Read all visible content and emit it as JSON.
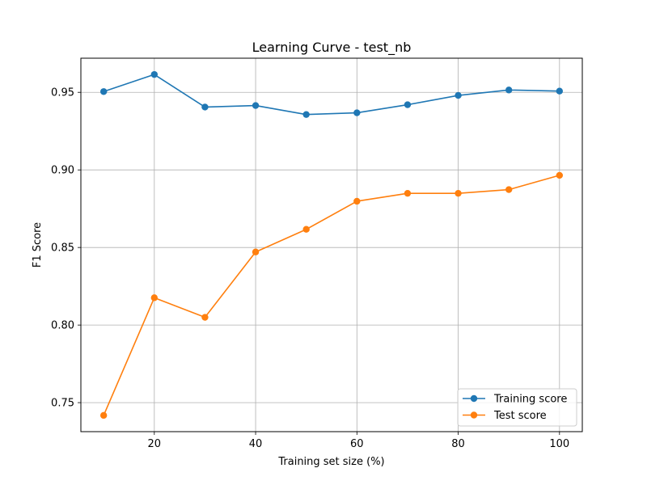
{
  "chart_data": {
    "type": "line",
    "title": "Learning Curve - test_nb",
    "xlabel": "Training set size (%)",
    "ylabel": "F1 Score",
    "xlim": [
      5.5,
      104.5
    ],
    "ylim": [
      0.7313,
      0.972
    ],
    "x": [
      10,
      20,
      30,
      40,
      50,
      60,
      70,
      80,
      90,
      100
    ],
    "xticks": [
      20,
      40,
      60,
      80,
      100
    ],
    "yticks": [
      0.75,
      0.8,
      0.85,
      0.9,
      0.95
    ],
    "ytick_labels": [
      "0.75",
      "0.80",
      "0.85",
      "0.90",
      "0.95"
    ],
    "grid": true,
    "legend_location": "lower right",
    "series": [
      {
        "name": "Training score",
        "color": "#1f77b4",
        "marker": "circle",
        "values": [
          0.9505,
          0.9615,
          0.9405,
          0.9415,
          0.9357,
          0.9368,
          0.942,
          0.948,
          0.9515,
          0.9508
        ]
      },
      {
        "name": "Test score",
        "color": "#ff7f0e",
        "marker": "circle",
        "values": [
          0.7418,
          0.8176,
          0.805,
          0.8471,
          0.8617,
          0.8798,
          0.8849,
          0.8849,
          0.8873,
          0.8965
        ]
      }
    ]
  }
}
